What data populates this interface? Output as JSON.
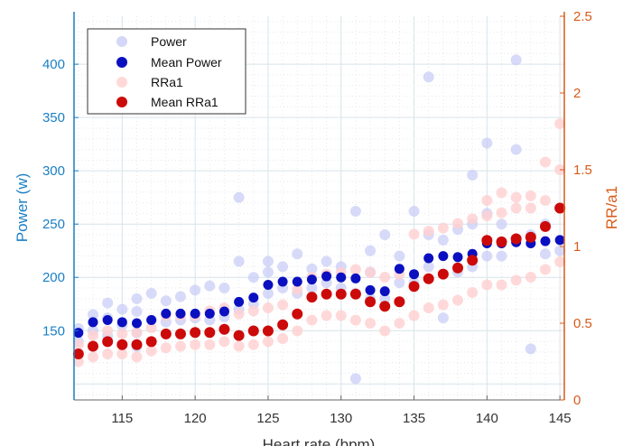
{
  "chart_data": {
    "type": "scatter",
    "xlabel": "Heart rate (bpm)",
    "ylabel_left": "Power (w)",
    "ylabel_right": "RR/a1",
    "xlim": [
      111.7,
      145.3
    ],
    "ylim_left": [
      85,
      445
    ],
    "ylim_right": [
      0,
      2.5
    ],
    "x_ticks": [
      "115",
      "120",
      "125",
      "130",
      "135",
      "140",
      "145"
    ],
    "y_left_ticks": [
      "150",
      "200",
      "250",
      "300",
      "350",
      "400"
    ],
    "y_right_ticks": [
      "0",
      "0.5",
      "1",
      "1.5",
      "2",
      "2.5"
    ],
    "grid": true,
    "legend": {
      "placement": "top-left",
      "entries": [
        "Power",
        "Mean Power",
        "RRa1",
        "Mean RRa1"
      ]
    },
    "colors": {
      "power": "#c9cdf5",
      "mean_power": "#0a10c0",
      "rra1": "#ffd0cf",
      "mean_rra1": "#cc0a0a",
      "left_axis": "#1a7fc4",
      "right_axis": "#d95a1a",
      "grid": "#d7e4ea"
    },
    "series": [
      {
        "name": "Mean Power",
        "axis": "left",
        "x": [
          112,
          113,
          114,
          115,
          116,
          117,
          118,
          119,
          120,
          121,
          122,
          123,
          124,
          125,
          126,
          127,
          128,
          129,
          130,
          131,
          132,
          133,
          134,
          135,
          136,
          137,
          138,
          139,
          140,
          141,
          142,
          143,
          144,
          145
        ],
        "values": [
          148,
          158,
          160,
          158,
          157,
          160,
          166,
          166,
          166,
          166,
          168,
          177,
          181,
          193,
          196,
          196,
          198,
          201,
          200,
          199,
          188,
          187,
          208,
          203,
          218,
          220,
          219,
          222,
          232,
          232,
          233,
          232,
          234,
          235
        ]
      },
      {
        "name": "Mean RRa1",
        "axis": "right",
        "x": [
          112,
          113,
          114,
          115,
          116,
          117,
          118,
          119,
          120,
          121,
          122,
          123,
          124,
          125,
          126,
          127,
          128,
          129,
          130,
          131,
          132,
          133,
          134,
          135,
          136,
          137,
          138,
          139,
          140,
          141,
          142,
          143,
          144,
          145
        ],
        "values": [
          0.3,
          0.35,
          0.38,
          0.36,
          0.36,
          0.38,
          0.43,
          0.43,
          0.44,
          0.44,
          0.46,
          0.42,
          0.45,
          0.45,
          0.49,
          0.56,
          0.67,
          0.69,
          0.69,
          0.69,
          0.64,
          0.61,
          0.64,
          0.74,
          0.79,
          0.82,
          0.86,
          0.91,
          1.04,
          1.03,
          1.05,
          1.06,
          1.13,
          1.25
        ]
      },
      {
        "name": "Power",
        "axis": "left",
        "x": [
          112,
          112,
          113,
          113,
          114,
          114,
          114,
          115,
          115,
          115,
          116,
          116,
          116,
          116,
          117,
          117,
          118,
          118,
          119,
          119,
          120,
          120,
          121,
          121,
          122,
          122,
          123,
          123,
          123,
          124,
          124,
          125,
          125,
          125,
          126,
          126,
          127,
          127,
          128,
          128,
          129,
          129,
          130,
          130,
          131,
          131,
          131,
          132,
          132,
          132,
          133,
          133,
          134,
          134,
          135,
          135,
          136,
          136,
          136,
          137,
          137,
          138,
          138,
          139,
          139,
          139,
          140,
          140,
          140,
          141,
          141,
          142,
          142,
          142,
          143,
          143,
          144,
          144,
          145,
          145
        ],
        "values": [
          140,
          152,
          150,
          165,
          145,
          162,
          176,
          137,
          155,
          170,
          135,
          148,
          168,
          180,
          160,
          185,
          158,
          178,
          160,
          182,
          162,
          188,
          160,
          192,
          163,
          190,
          275,
          170,
          215,
          175,
          200,
          185,
          205,
          215,
          190,
          210,
          185,
          222,
          190,
          208,
          195,
          215,
          190,
          210,
          105,
          185,
          262,
          180,
          225,
          205,
          180,
          240,
          195,
          220,
          195,
          262,
          210,
          240,
          388,
          162,
          235,
          205,
          245,
          210,
          250,
          296,
          220,
          260,
          326,
          220,
          250,
          404,
          235,
          320,
          133,
          240,
          222,
          250,
          225,
          265
        ]
      },
      {
        "name": "RRa1",
        "axis": "right",
        "x": [
          112,
          112,
          113,
          113,
          114,
          114,
          115,
          115,
          116,
          116,
          117,
          117,
          118,
          118,
          119,
          119,
          120,
          120,
          121,
          121,
          122,
          122,
          123,
          123,
          124,
          124,
          125,
          125,
          126,
          126,
          127,
          127,
          128,
          128,
          129,
          129,
          130,
          130,
          131,
          131,
          132,
          132,
          133,
          133,
          134,
          134,
          135,
          135,
          136,
          136,
          137,
          137,
          138,
          138,
          139,
          139,
          140,
          140,
          140,
          141,
          141,
          141,
          142,
          142,
          142,
          143,
          143,
          143,
          144,
          144,
          144,
          145,
          145,
          145
        ],
        "values": [
          0.25,
          0.36,
          0.28,
          0.42,
          0.3,
          0.45,
          0.3,
          0.43,
          0.28,
          0.44,
          0.32,
          0.47,
          0.34,
          0.55,
          0.35,
          0.55,
          0.36,
          0.55,
          0.36,
          0.58,
          0.38,
          0.6,
          0.35,
          0.56,
          0.36,
          0.58,
          0.38,
          0.6,
          0.4,
          0.62,
          0.45,
          0.72,
          0.52,
          0.8,
          0.55,
          0.82,
          0.55,
          0.83,
          0.52,
          0.85,
          0.5,
          0.83,
          0.45,
          0.8,
          0.5,
          0.82,
          0.55,
          1.08,
          0.6,
          1.1,
          0.62,
          1.12,
          0.65,
          1.15,
          0.7,
          1.18,
          0.75,
          1.2,
          1.3,
          0.75,
          1.22,
          1.35,
          0.78,
          1.25,
          1.32,
          0.8,
          1.25,
          1.33,
          0.85,
          1.3,
          1.55,
          0.9,
          1.5,
          1.8
        ]
      }
    ]
  }
}
